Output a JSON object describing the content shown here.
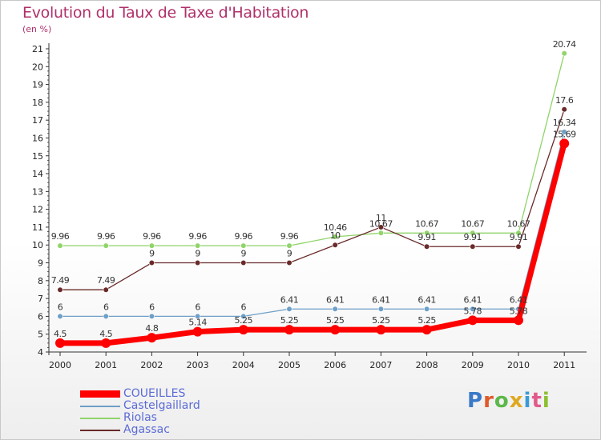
{
  "chart_data": {
    "type": "line",
    "title": "Evolution du Taux de Taxe d'Habitation",
    "ylabel": "(en %)",
    "xlabel": "",
    "ylim": [
      4,
      21
    ],
    "yticks": [
      4,
      5,
      6,
      7,
      8,
      9,
      10,
      11,
      12,
      13,
      14,
      15,
      16,
      17,
      18,
      19,
      20,
      21
    ],
    "categories": [
      "2000",
      "2001",
      "2002",
      "2003",
      "2004",
      "2005",
      "2006",
      "2007",
      "2008",
      "2009",
      "2010",
      "2011"
    ],
    "series": [
      {
        "name": "COUEILLES",
        "color": "#ff0000",
        "values": [
          4.5,
          4.5,
          4.8,
          5.14,
          5.25,
          5.25,
          5.25,
          5.25,
          5.25,
          5.78,
          5.78,
          15.69
        ],
        "labels": [
          "4.5",
          "4.5",
          "4.8",
          "5.14",
          "5.25",
          "5.25",
          "5.25",
          "5.25",
          "5.25",
          "5.78",
          "5.78",
          "15.69"
        ]
      },
      {
        "name": "Castelgaillard",
        "color": "#6e9fc7",
        "values": [
          6,
          6,
          6,
          6,
          6,
          6.41,
          6.41,
          6.41,
          6.41,
          6.41,
          6.41,
          16.34
        ],
        "labels": [
          "6",
          "6",
          "6",
          "6",
          "6",
          "6.41",
          "6.41",
          "6.41",
          "6.41",
          "6.41",
          "6.41",
          "16.34"
        ]
      },
      {
        "name": "Riolas",
        "color": "#90d46a",
        "values": [
          9.96,
          9.96,
          9.96,
          9.96,
          9.96,
          9.96,
          10.46,
          10.67,
          10.67,
          10.67,
          10.67,
          20.74
        ],
        "labels": [
          "9.96",
          "9.96",
          "9.96",
          "9.96",
          "9.96",
          "9.96",
          "10.46",
          "10.67",
          "10.67",
          "10.67",
          "10.67",
          "20.74"
        ]
      },
      {
        "name": "Agassac",
        "color": "#6a2a2a",
        "values": [
          7.49,
          7.49,
          9,
          9,
          9,
          9,
          10,
          11,
          9.91,
          9.91,
          9.91,
          17.6
        ],
        "labels": [
          "7.49",
          "7.49",
          "9",
          "9",
          "9",
          "9",
          "10",
          "11",
          "9.91",
          "9.91",
          "9.91",
          "17.6"
        ]
      }
    ]
  },
  "legend": {
    "items": [
      {
        "name": "COUEILLES",
        "color": "#ff0000"
      },
      {
        "name": "Castelgaillard",
        "color": "#6e9fc7"
      },
      {
        "name": "Riolas",
        "color": "#90d46a"
      },
      {
        "name": "Agassac",
        "color": "#6a2a2a"
      }
    ]
  },
  "brand": {
    "text": "Proxiti"
  }
}
